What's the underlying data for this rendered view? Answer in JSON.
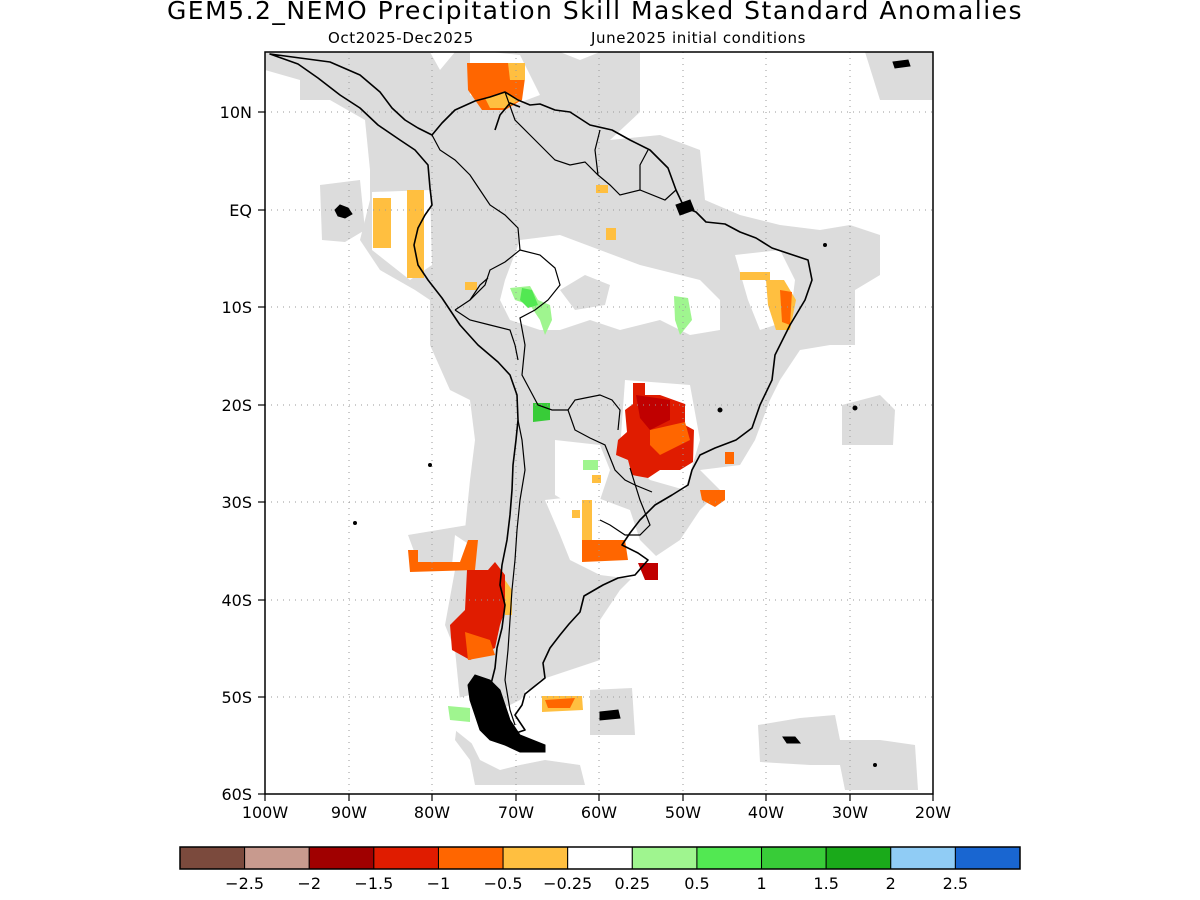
{
  "title": "GEM5.2_NEMO Precipitation Skill Masked Standard Anomalies",
  "subtitle_left": "Oct2025-Dec2025",
  "subtitle_right": "June2025 initial conditions",
  "map": {
    "region": "South America",
    "lon_range": [
      -100,
      -20
    ],
    "lat_range": [
      -60,
      15
    ],
    "x_tick_labels": [
      "100W",
      "90W",
      "80W",
      "70W",
      "60W",
      "50W",
      "40W",
      "30W",
      "20W"
    ],
    "y_tick_labels": [
      "10N",
      "EQ",
      "10S",
      "20S",
      "30S",
      "40S",
      "50S",
      "60S"
    ],
    "gridlines": true,
    "mask_color": "#dcdcdc",
    "regions": [
      {
        "name": "northern Colombia / Venezuela coast",
        "category": "-1.5 to -0.5",
        "lon": [
          -76,
          -71
        ],
        "lat": [
          8,
          15
        ]
      },
      {
        "name": "Ecuador / Peru coast",
        "category": "-0.5 to -0.25",
        "lon": [
          -84,
          -81
        ],
        "lat": [
          -7,
          1
        ]
      },
      {
        "name": "NE Brazil",
        "category": "-1 to -0.25",
        "lon": [
          -40,
          -37
        ],
        "lat": [
          -12,
          -7
        ]
      },
      {
        "name": "Bolivia / western Brazil",
        "category": "0.25 to 1",
        "lon": [
          -71,
          -67
        ],
        "lat": [
          -13,
          -8
        ]
      },
      {
        "name": "central Brazil",
        "category": "0.25 to 1",
        "lon": [
          -50,
          -48
        ],
        "lat": [
          -12,
          -9
        ]
      },
      {
        "name": "southern Brazil / Paraguay",
        "category": "-1.5 to -0.25",
        "lon": [
          -57,
          -49
        ],
        "lat": [
          -27,
          -19
        ]
      },
      {
        "name": "northern Chile",
        "category": "1 to 1.5",
        "lon": [
          -68,
          -66
        ],
        "lat": [
          -22,
          -20
        ]
      },
      {
        "name": "central Argentina",
        "category": "-1 to -0.25",
        "lon": [
          -64,
          -57
        ],
        "lat": [
          -36,
          -30
        ]
      },
      {
        "name": "Buenos Aires coast",
        "category": "-1.5 to -1",
        "lon": [
          -57,
          -55
        ],
        "lat": [
          -38,
          -37
        ]
      },
      {
        "name": "southern Chile",
        "category": "-1.5 to -0.25",
        "lon": [
          -82,
          -72
        ],
        "lat": [
          -46,
          -34
        ]
      },
      {
        "name": "Patagonia Argentina",
        "category": "-1 to -0.5",
        "lon": [
          -69,
          -64
        ],
        "lat": [
          -52,
          -50
        ]
      },
      {
        "name": "southern Chile coast",
        "category": "0.25 to 0.5",
        "lon": [
          -77,
          -75
        ],
        "lat": [
          -53,
          -51
        ]
      }
    ]
  },
  "colorbar": {
    "colors": [
      "#7b4a3d",
      "#c89a8e",
      "#a00000",
      "#e01c00",
      "#ff6600",
      "#ffbf40",
      "#ffffff",
      "#9ff58f",
      "#52e852",
      "#38cc38",
      "#1aaa1a",
      "#90ccf5",
      "#1966d1"
    ],
    "labels": [
      "-2.5",
      "-2",
      "-1.5",
      "-1",
      "-0.5",
      "-0.25",
      "0.25",
      "0.5",
      "1",
      "1.5",
      "2",
      "2.5"
    ]
  }
}
